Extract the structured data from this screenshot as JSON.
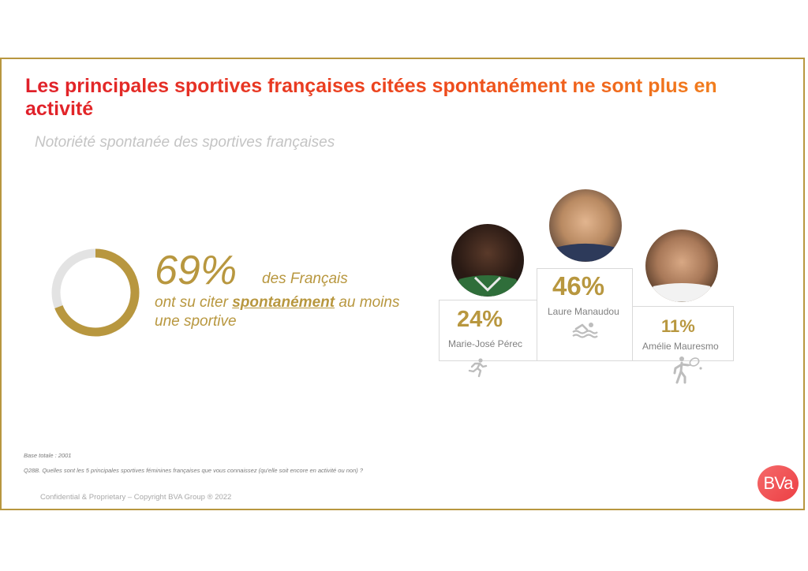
{
  "slide": {
    "title": "Les principales sportives françaises citées spontanément ne sont plus en activité",
    "subtitle": "Notoriété spontanée des sportives françaises"
  },
  "highlight": {
    "percent": "69%",
    "percent_value": 0.69,
    "suffix": "des Français",
    "desc_before": "ont su citer ",
    "desc_emphasis": "spontanément",
    "desc_after": " au moins une sportive"
  },
  "podium": [
    {
      "rank_position": "left",
      "percent": "24%",
      "name": "Marie-José Pérec",
      "sport_icon": "running-icon"
    },
    {
      "rank_position": "center",
      "percent": "46%",
      "name": "Laure Manaudou",
      "sport_icon": "swimming-icon"
    },
    {
      "rank_position": "right",
      "percent": "11%",
      "name": "Amélie Mauresmo",
      "sport_icon": "tennis-icon"
    }
  ],
  "footer": {
    "base": "Base totale : 2001",
    "question": "Q28B. Quelles sont les 5 principales sportives féminines françaises que vous connaissez (qu'elle soit encore en activité ou non) ?",
    "copyright": "Confidential & Proprietary – Copyright BVA Group ®  2022",
    "logo": "BVa"
  },
  "colors": {
    "accent_gold": "#b8973f",
    "title_red": "#e8401c",
    "donut_track": "#e3e3e3"
  }
}
